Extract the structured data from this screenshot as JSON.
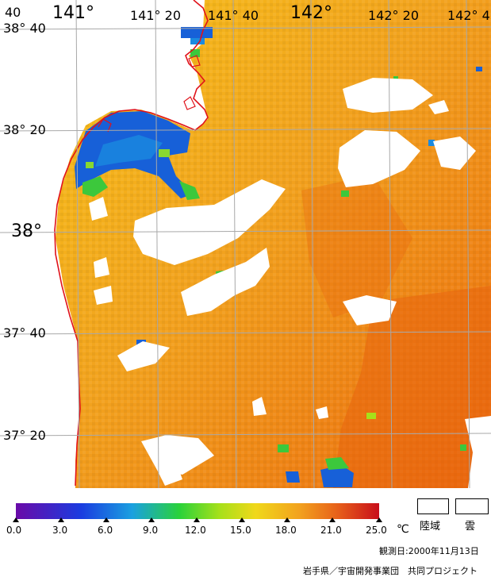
{
  "map": {
    "lon_labels": [
      {
        "deg": "40",
        "min": ""
      },
      {
        "deg": "141°",
        "min": ""
      },
      {
        "deg": "141°",
        "min": "20"
      },
      {
        "deg": "141°",
        "min": "40"
      },
      {
        "deg": "142°",
        "min": ""
      },
      {
        "deg": "142°",
        "min": "20"
      },
      {
        "deg": "142°",
        "min": "4"
      }
    ],
    "lat_labels": [
      {
        "deg": "38°",
        "min": "40"
      },
      {
        "deg": "38°",
        "min": "20"
      },
      {
        "deg": "38°",
        "min": ""
      },
      {
        "deg": "37°",
        "min": "40"
      },
      {
        "deg": "37°",
        "min": "20"
      }
    ]
  },
  "colors": {
    "land": "#ffffff",
    "coastline": "#e0121a",
    "grid": "#a8a8a8",
    "sea_warm": "#f2a21e",
    "sea_hot": "#ec6a0e",
    "sea_cool": "#f6c21a",
    "cold_patch": "#1760d8",
    "mid_patch": "#3cc83c"
  },
  "legend": {
    "ticks": [
      "0.0",
      "3.0",
      "6.0",
      "9.0",
      "12.0",
      "15.0",
      "18.0",
      "21.0",
      "25.0"
    ],
    "unit": "℃",
    "land_label": "陸域",
    "cloud_label": "雲",
    "gradient": [
      "#6a0aa8",
      "#1a3ce0",
      "#1aa0e0",
      "#2ad23a",
      "#a6e01a",
      "#f0d81a",
      "#f2a21e",
      "#e8641a",
      "#c80e1a"
    ]
  },
  "footer": {
    "observed": "観測日:2000年11月13日",
    "credit": "岩手県／宇宙開発事業団　共同プロジェクト"
  }
}
